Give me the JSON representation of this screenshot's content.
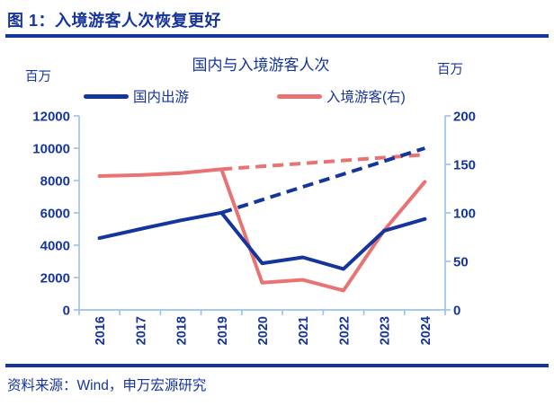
{
  "figure": {
    "title": "图 1：入境游客人次恢复更好"
  },
  "source": {
    "text": "资料来源：Wind，申万宏源研究"
  },
  "colors": {
    "navy": "#16359C",
    "red": "#E97272",
    "axis": "#9DC3E6",
    "background": "#FFFFFF"
  },
  "chart_data": {
    "type": "line",
    "title": "国内与入境游客人次",
    "x": [
      2016,
      2017,
      2018,
      2019,
      2020,
      2021,
      2022,
      2023,
      2024
    ],
    "left_axis": {
      "unit_label": "百万",
      "min": 0,
      "max": 12000,
      "ticks": [
        0,
        2000,
        4000,
        6000,
        8000,
        10000,
        12000
      ]
    },
    "right_axis": {
      "unit_label": "百万",
      "min": 0,
      "max": 200,
      "ticks": [
        0,
        50,
        100,
        150,
        200
      ]
    },
    "grid": "none",
    "legend_position": "top",
    "legend": [
      {
        "label": "国内出游",
        "color": "#16359C"
      },
      {
        "label": "入境游客(右)",
        "color": "#E97272"
      }
    ],
    "series": [
      {
        "id": "inbound-trend-dashed",
        "axis": "right",
        "dashed": true,
        "color": "#E97272",
        "start_year": 2019,
        "values": [
          145,
          148,
          151,
          154,
          157,
          160
        ]
      },
      {
        "id": "domestic-trend-dashed",
        "axis": "left",
        "dashed": true,
        "color": "#16359C",
        "start_year": 2019,
        "values": [
          6010,
          6810,
          7610,
          8400,
          9200,
          10000
        ]
      },
      {
        "id": "inbound-solid",
        "name": "入境游客(右)",
        "axis": "right",
        "dashed": false,
        "color": "#E97272",
        "start_year": 2016,
        "values": [
          138,
          139,
          141,
          145,
          28,
          31,
          20,
          82,
          132
        ]
      },
      {
        "id": "domestic-solid",
        "name": "国内出游",
        "axis": "left",
        "dashed": false,
        "color": "#16359C",
        "start_year": 2016,
        "values": [
          4440,
          5000,
          5540,
          6010,
          2880,
          3250,
          2530,
          4890,
          5620
        ]
      }
    ]
  }
}
